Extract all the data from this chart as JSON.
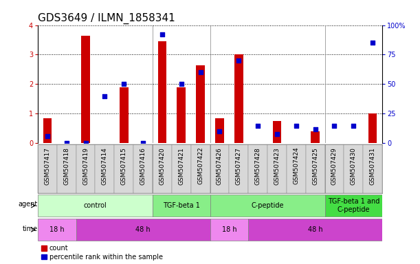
{
  "title": "GDS3649 / ILMN_1858341",
  "samples": [
    "GSM507417",
    "GSM507418",
    "GSM507419",
    "GSM507414",
    "GSM507415",
    "GSM507416",
    "GSM507420",
    "GSM507421",
    "GSM507422",
    "GSM507426",
    "GSM507427",
    "GSM507428",
    "GSM507423",
    "GSM507424",
    "GSM507425",
    "GSM507429",
    "GSM507430",
    "GSM507431"
  ],
  "count_values": [
    0.85,
    0.0,
    3.65,
    0.0,
    1.9,
    0.0,
    3.45,
    1.9,
    2.65,
    0.85,
    3.0,
    0.0,
    0.75,
    0.0,
    0.4,
    0.0,
    0.0,
    1.0
  ],
  "percentile_values": [
    0.06,
    0.0,
    0.0,
    0.4,
    0.5,
    0.0,
    0.92,
    0.5,
    0.6,
    0.1,
    0.7,
    0.15,
    0.08,
    0.15,
    0.12,
    0.15,
    0.15,
    0.85
  ],
  "bar_color": "#CC0000",
  "dot_color": "#0000CC",
  "ylim_left": [
    0,
    4
  ],
  "ylim_right": [
    0,
    100
  ],
  "yticks_left": [
    0,
    1,
    2,
    3,
    4
  ],
  "yticks_right": [
    0,
    25,
    50,
    75,
    100
  ],
  "ytick_labels_right": [
    "0",
    "25",
    "50",
    "75",
    "100%"
  ],
  "agent_groups": [
    {
      "label": "control",
      "start": 0,
      "end": 6,
      "color": "#ccffcc"
    },
    {
      "label": "TGF-beta 1",
      "start": 6,
      "end": 9,
      "color": "#88ee88"
    },
    {
      "label": "C-peptide",
      "start": 9,
      "end": 15,
      "color": "#88ee88"
    },
    {
      "label": "TGF-beta 1 and\nC-peptide",
      "start": 15,
      "end": 18,
      "color": "#44dd44"
    }
  ],
  "time_groups": [
    {
      "label": "18 h",
      "start": 0,
      "end": 2,
      "color": "#ee88ee"
    },
    {
      "label": "48 h",
      "start": 2,
      "end": 9,
      "color": "#cc44cc"
    },
    {
      "label": "18 h",
      "start": 9,
      "end": 11,
      "color": "#ee88ee"
    },
    {
      "label": "48 h",
      "start": 11,
      "end": 18,
      "color": "#cc44cc"
    }
  ],
  "bar_width": 0.45,
  "dot_size": 18,
  "axis_label_color_left": "#CC0000",
  "axis_label_color_right": "#0000CC",
  "legend_count_label": "count",
  "legend_percentile_label": "percentile rank within the sample",
  "tick_fontsize": 7,
  "label_fontsize": 8,
  "title_fontsize": 11,
  "group_dividers": [
    5.5,
    8.5,
    14.5
  ]
}
